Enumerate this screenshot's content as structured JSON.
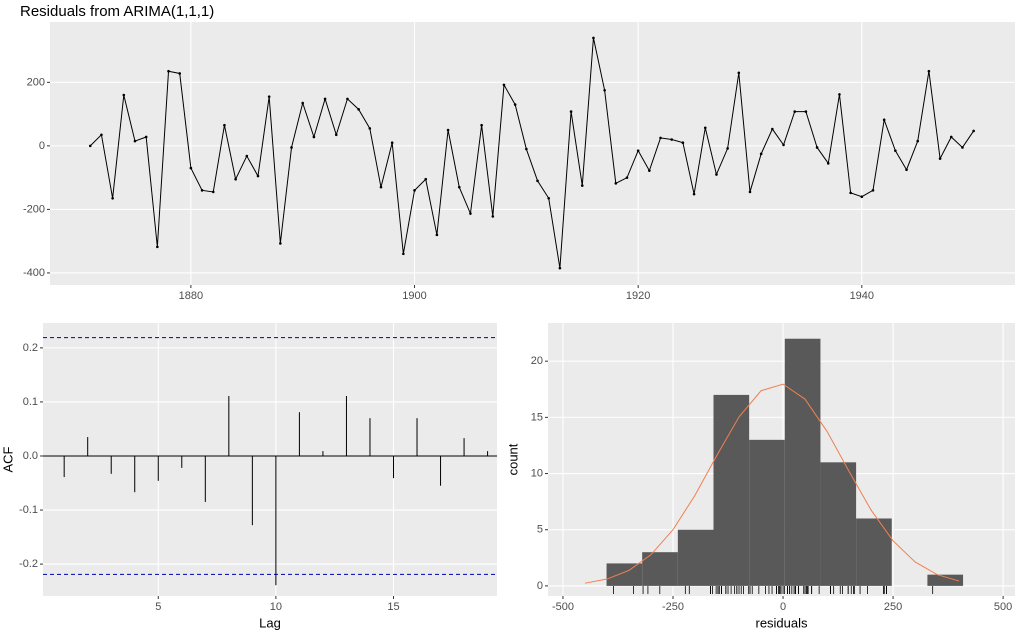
{
  "chart_data": [
    {
      "type": "line",
      "title": "Residuals from ARIMA(1,1,1)",
      "x": [
        1871,
        1872,
        1873,
        1874,
        1875,
        1876,
        1877,
        1878,
        1879,
        1880,
        1881,
        1882,
        1883,
        1884,
        1885,
        1886,
        1887,
        1888,
        1889,
        1890,
        1891,
        1892,
        1893,
        1894,
        1895,
        1896,
        1897,
        1898,
        1899,
        1900,
        1901,
        1902,
        1903,
        1904,
        1905,
        1906,
        1907,
        1908,
        1909,
        1910,
        1911,
        1912,
        1913,
        1914,
        1915,
        1916,
        1917,
        1918,
        1919,
        1920,
        1921,
        1922,
        1923,
        1924,
        1925,
        1926,
        1927,
        1928,
        1929,
        1930,
        1931,
        1932,
        1933,
        1934,
        1935,
        1936,
        1937,
        1938,
        1939,
        1940,
        1941,
        1942,
        1943,
        1944,
        1945,
        1946,
        1947,
        1948,
        1949,
        1950
      ],
      "values": [
        0,
        35,
        -165,
        160,
        15,
        28,
        -318,
        235,
        228,
        -70,
        -140,
        -145,
        65,
        -105,
        -32,
        -95,
        155,
        -307,
        -5,
        135,
        28,
        148,
        35,
        148,
        115,
        55,
        -130,
        10,
        -340,
        -140,
        -105,
        -280,
        50,
        -130,
        -213,
        65,
        -222,
        192,
        130,
        -10,
        -110,
        -165,
        -385,
        108,
        -125,
        340,
        175,
        -118,
        -100,
        -15,
        -78,
        25,
        20,
        10,
        -152,
        57,
        -90,
        -8,
        230,
        -145,
        -25,
        53,
        3,
        108,
        108,
        -5,
        -55,
        162,
        -148,
        -160,
        -140,
        82,
        -15,
        -75,
        15,
        235,
        -40,
        28,
        -5,
        47
      ],
      "color": "#000000",
      "xlim": [
        1867.4,
        1953.7
      ],
      "xticks": [
        1880,
        1900,
        1920,
        1940
      ],
      "ylim": [
        -438,
        390
      ],
      "yticks": [
        -400,
        -200,
        0,
        200
      ],
      "grid": true
    },
    {
      "type": "acf",
      "xlabel": "Lag",
      "ylabel": "ACF",
      "x": [
        1,
        2,
        3,
        4,
        5,
        6,
        7,
        8,
        9,
        10,
        11,
        12,
        13,
        14,
        15,
        16,
        17,
        18,
        19
      ],
      "values": [
        -0.039,
        0.035,
        -0.033,
        -0.067,
        -0.046,
        -0.022,
        -0.085,
        0.111,
        -0.128,
        -0.239,
        0.081,
        0.009,
        0.111,
        0.07,
        -0.041,
        0.07,
        -0.055,
        0.033,
        0.009
      ],
      "color": "#000000",
      "ci_lines": [
        -0.219,
        0.219
      ],
      "ci_color": "#0000b3",
      "xlim": [
        0.1,
        19.4
      ],
      "xticks": [
        5,
        10,
        15
      ],
      "ylim": [
        -0.259,
        0.246
      ],
      "yticks": [
        -0.2,
        -0.1,
        0.0,
        0.1,
        0.2
      ],
      "grid": true
    },
    {
      "type": "histogram",
      "xlabel": "residuals",
      "ylabel": "count",
      "bins": [
        -401,
        -320,
        -239,
        -158,
        -77,
        4,
        85,
        166,
        247,
        328,
        409
      ],
      "counts": [
        2,
        3,
        5,
        17,
        13,
        22,
        11,
        6,
        0,
        1
      ],
      "color": "#595959",
      "curve": {
        "color": "#f08050",
        "x": [
          -450,
          -400,
          -350,
          -300,
          -250,
          -200,
          -150,
          -100,
          -50,
          0,
          50,
          100,
          150,
          200,
          250,
          300,
          350,
          400
        ],
        "y": [
          0.24,
          0.61,
          1.38,
          2.78,
          5.0,
          8.07,
          11.64,
          15.04,
          17.37,
          17.96,
          16.62,
          13.75,
          10.19,
          6.75,
          4.01,
          2.13,
          1.01,
          0.43
        ]
      },
      "rug": true,
      "xlim": [
        -534,
        527
      ],
      "xticks": [
        -500,
        -250,
        0,
        250,
        500
      ],
      "ylim": [
        -0.9,
        23.4
      ],
      "yticks": [
        0,
        5,
        10,
        15,
        20
      ],
      "grid": true
    }
  ]
}
